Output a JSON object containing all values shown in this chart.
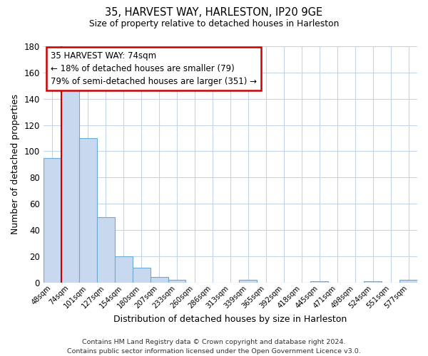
{
  "title": "35, HARVEST WAY, HARLESTON, IP20 9GE",
  "subtitle": "Size of property relative to detached houses in Harleston",
  "xlabel": "Distribution of detached houses by size in Harleston",
  "ylabel": "Number of detached properties",
  "footer_line1": "Contains HM Land Registry data © Crown copyright and database right 2024.",
  "footer_line2": "Contains public sector information licensed under the Open Government Licence v3.0.",
  "bar_labels": [
    "48sqm",
    "74sqm",
    "101sqm",
    "127sqm",
    "154sqm",
    "180sqm",
    "207sqm",
    "233sqm",
    "260sqm",
    "286sqm",
    "313sqm",
    "339sqm",
    "365sqm",
    "392sqm",
    "418sqm",
    "445sqm",
    "471sqm",
    "498sqm",
    "524sqm",
    "551sqm",
    "577sqm"
  ],
  "bar_values": [
    95,
    150,
    110,
    50,
    20,
    11,
    4,
    2,
    0,
    0,
    0,
    2,
    0,
    0,
    0,
    1,
    0,
    0,
    1,
    0,
    2
  ],
  "bar_color": "#c8d9ef",
  "bar_edge_color": "#6aaad4",
  "annotation_title": "35 HARVEST WAY: 74sqm",
  "annotation_line1": "← 18% of detached houses are smaller (79)",
  "annotation_line2": "79% of semi-detached houses are larger (351) →",
  "annotation_box_color": "#ffffff",
  "annotation_box_edge": "#cc0000",
  "red_line_color": "#cc0000",
  "ylim": [
    0,
    180
  ],
  "yticks": [
    0,
    20,
    40,
    60,
    80,
    100,
    120,
    140,
    160,
    180
  ],
  "background_color": "#ffffff",
  "grid_color": "#c5d5e8"
}
